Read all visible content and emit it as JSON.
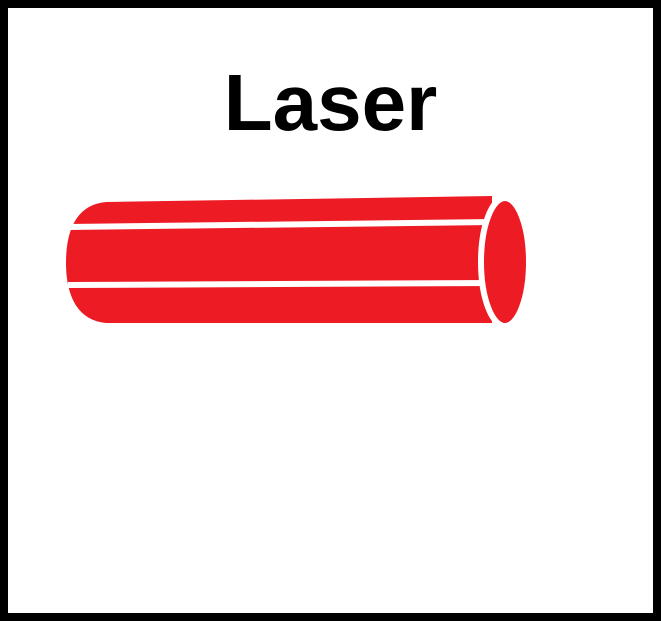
{
  "title": "Laser",
  "icon": "laser-rod-icon",
  "colors": {
    "rod": "#ed1c24",
    "stripe": "#ffffff",
    "border": "#000000",
    "background": "#ffffff"
  }
}
